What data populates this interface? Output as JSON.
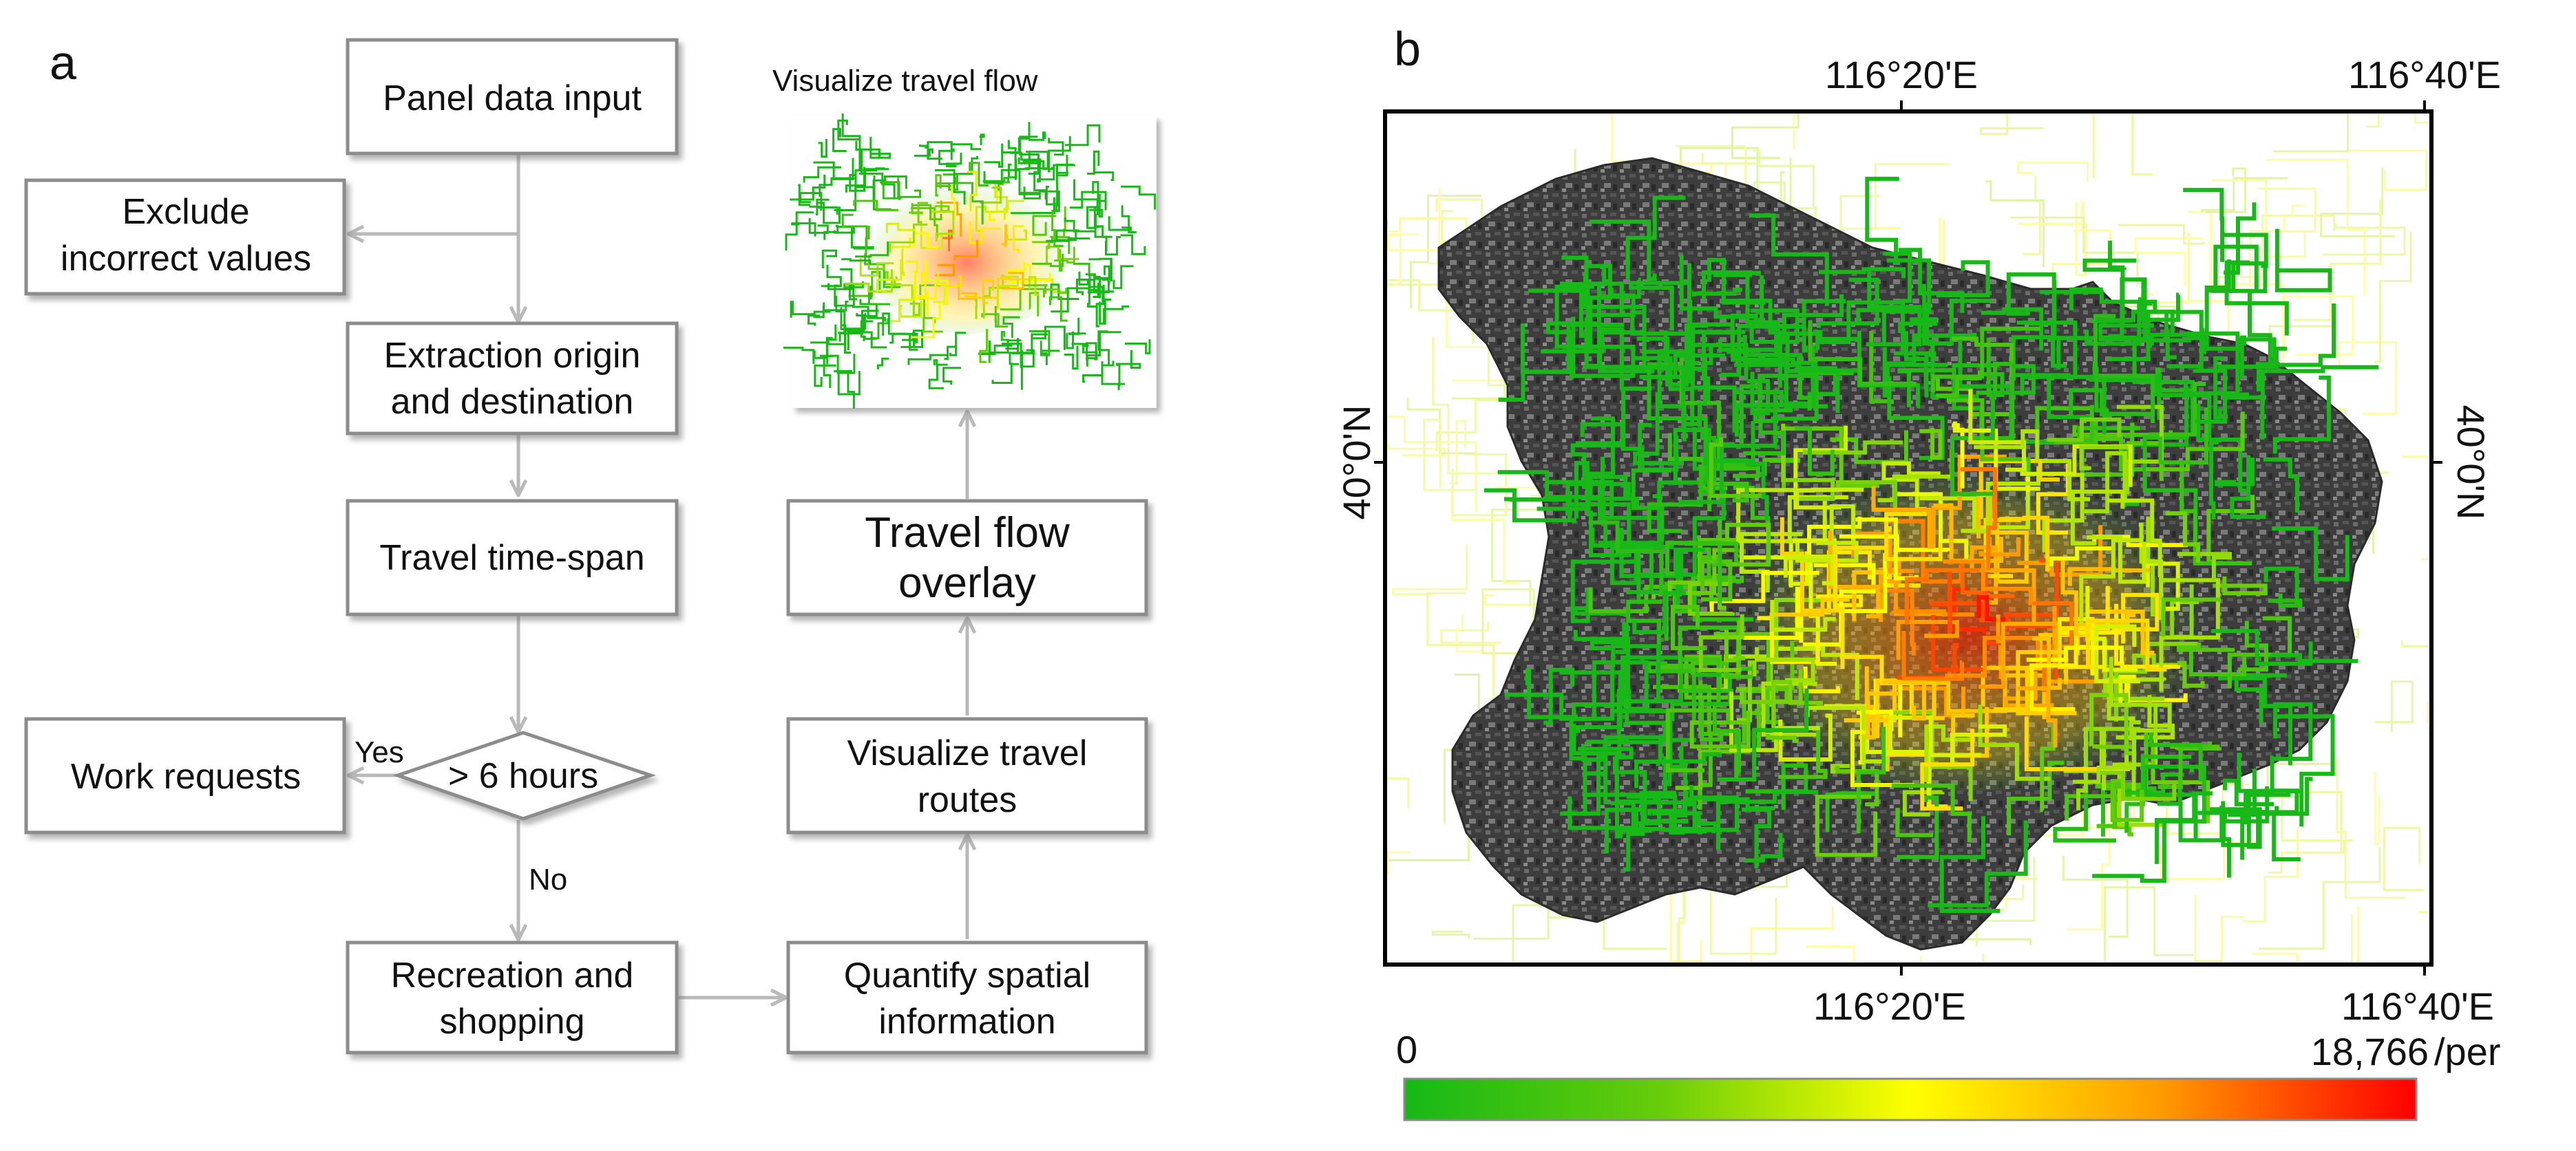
{
  "panel_a": {
    "label": "a",
    "nodes": {
      "panel_input": "Panel data input",
      "exclude_line1": "Exclude",
      "exclude_line2": "incorrect values",
      "extract_line1": "Extraction origin",
      "extract_line2": "and destination",
      "timespan": "Travel time-span",
      "decision": "> 6 hours",
      "work": "Work requests",
      "recreation_line1": "Recreation and",
      "recreation_line2": "shopping",
      "quantify_line1": "Quantify spatial",
      "quantify_line2": "information",
      "routes_line1": "Visualize travel",
      "routes_line2": "routes",
      "overlay_line1": "Travel flow",
      "overlay_line2": "overlay"
    },
    "edge_labels": {
      "yes": "Yes",
      "no": "No"
    },
    "thumbnail_title": "Visualize travel flow"
  },
  "panel_b": {
    "label": "b",
    "top_ticks": [
      "116°20'E",
      "116°40'E"
    ],
    "bottom_ticks": [
      "116°20'E",
      "116°40'E"
    ],
    "left_tick": "40°0'N",
    "right_tick": "40°0'N",
    "colorbar": {
      "min_label": "0",
      "max_label": "18,766",
      "unit": "/per",
      "colors": [
        "#17b817",
        "#66cc0a",
        "#ffff00",
        "#ff9900",
        "#ff0000"
      ]
    }
  }
}
